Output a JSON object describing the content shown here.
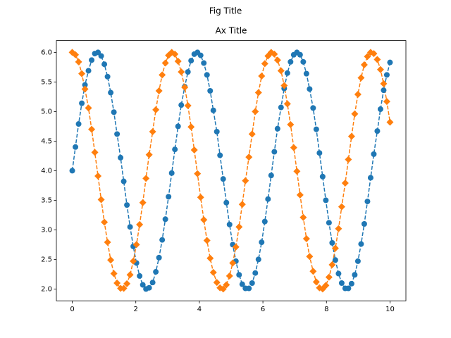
{
  "chart_data": {
    "type": "line",
    "figure_title": "Fig Title",
    "title": "Ax Title",
    "x": [
      0,
      0.1,
      0.2,
      0.3,
      0.4,
      0.51,
      0.61,
      0.71,
      0.81,
      0.91,
      1.01,
      1.11,
      1.21,
      1.31,
      1.41,
      1.52,
      1.62,
      1.72,
      1.82,
      1.92,
      2.02,
      2.12,
      2.22,
      2.32,
      2.42,
      2.53,
      2.63,
      2.73,
      2.83,
      2.93,
      3.03,
      3.13,
      3.23,
      3.33,
      3.43,
      3.54,
      3.64,
      3.74,
      3.84,
      3.94,
      4.04,
      4.14,
      4.24,
      4.34,
      4.44,
      4.55,
      4.65,
      4.75,
      4.85,
      4.95,
      5.05,
      5.15,
      5.25,
      5.35,
      5.45,
      5.56,
      5.66,
      5.76,
      5.86,
      5.96,
      6.06,
      6.16,
      6.26,
      6.36,
      6.46,
      6.57,
      6.67,
      6.77,
      6.87,
      6.97,
      7.07,
      7.17,
      7.27,
      7.37,
      7.47,
      7.58,
      7.68,
      7.78,
      7.88,
      7.98,
      8.08,
      8.18,
      8.28,
      8.38,
      8.48,
      8.59,
      8.69,
      8.79,
      8.89,
      8.99,
      9.09,
      9.19,
      9.29,
      9.39,
      9.49,
      9.6,
      9.7,
      9.8,
      9.9,
      10
    ],
    "series": [
      {
        "color": "#1f77b4",
        "marker": "circle",
        "linestyle": "dashed",
        "values": [
          4.0,
          4.4,
          4.79,
          5.14,
          5.45,
          5.69,
          5.87,
          5.98,
          6.0,
          5.94,
          5.8,
          5.59,
          5.32,
          4.99,
          4.62,
          4.22,
          3.82,
          3.42,
          3.05,
          2.72,
          2.44,
          2.22,
          2.07,
          2.0,
          2.02,
          2.11,
          2.29,
          2.53,
          2.83,
          3.18,
          3.56,
          3.96,
          4.36,
          4.75,
          5.11,
          5.42,
          5.67,
          5.86,
          5.97,
          6.0,
          5.95,
          5.82,
          5.62,
          5.35,
          5.02,
          4.66,
          4.26,
          3.86,
          3.46,
          3.09,
          2.75,
          2.47,
          2.24,
          2.08,
          2.01,
          2.01,
          2.1,
          2.27,
          2.5,
          2.79,
          3.14,
          3.52,
          3.92,
          4.32,
          4.71,
          5.07,
          5.39,
          5.65,
          5.84,
          5.96,
          6.0,
          5.96,
          5.84,
          5.64,
          5.38,
          5.06,
          4.7,
          4.3,
          3.9,
          3.5,
          3.12,
          2.78,
          2.49,
          2.26,
          2.1,
          2.01,
          2.01,
          2.09,
          2.24,
          2.47,
          2.76,
          3.1,
          3.48,
          3.88,
          4.28,
          4.67,
          5.04,
          5.36,
          5.62,
          5.83
        ]
      },
      {
        "color": "#ff7f0e",
        "marker": "diamond",
        "linestyle": "dashed",
        "values": [
          6.0,
          5.96,
          5.84,
          5.64,
          5.38,
          5.06,
          4.7,
          4.31,
          3.91,
          3.51,
          3.13,
          2.79,
          2.49,
          2.26,
          2.1,
          2.01,
          2.01,
          2.09,
          2.24,
          2.47,
          2.75,
          3.09,
          3.46,
          3.87,
          4.27,
          4.66,
          5.03,
          5.35,
          5.62,
          5.82,
          5.95,
          6.0,
          5.97,
          5.85,
          5.67,
          5.41,
          5.1,
          4.74,
          4.35,
          3.95,
          3.55,
          3.17,
          2.82,
          2.52,
          2.28,
          2.11,
          2.02,
          2.0,
          2.07,
          2.22,
          2.44,
          2.71,
          3.05,
          3.43,
          3.83,
          4.23,
          4.62,
          5.0,
          5.32,
          5.6,
          5.81,
          5.94,
          6.0,
          5.97,
          5.87,
          5.69,
          5.44,
          5.13,
          4.78,
          4.39,
          3.99,
          3.59,
          3.21,
          2.85,
          2.55,
          2.3,
          2.12,
          2.02,
          2.0,
          2.06,
          2.2,
          2.41,
          2.69,
          3.02,
          3.39,
          3.79,
          4.19,
          4.58,
          4.96,
          5.29,
          5.57,
          5.79,
          5.93,
          6.0,
          5.98,
          5.88,
          5.71,
          5.47,
          5.17,
          4.82
        ]
      }
    ],
    "xlim": [
      -0.5,
      10.5
    ],
    "ylim": [
      1.8,
      6.2
    ],
    "xticks": [
      0,
      2,
      4,
      6,
      8,
      10
    ],
    "yticks": [
      {
        "value": 2,
        "label": "2.0"
      },
      {
        "value": 2.5,
        "label": "2.5"
      },
      {
        "value": 3,
        "label": "3.0"
      },
      {
        "value": 3.5,
        "label": "3.5"
      },
      {
        "value": 4,
        "label": "4.0"
      },
      {
        "value": 4.5,
        "label": "4.5"
      },
      {
        "value": 5,
        "label": "5.0"
      },
      {
        "value": 5.5,
        "label": "5.5"
      },
      {
        "value": 6,
        "label": "6.0"
      }
    ],
    "grid": false
  }
}
